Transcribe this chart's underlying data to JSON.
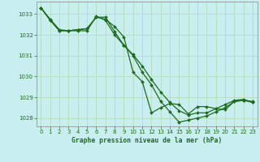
{
  "xlabel": "Graphe pression niveau de la mer (hPa)",
  "background_color": "#c8eef0",
  "line_color": "#1e6b1e",
  "grid_color": "#b0d8b0",
  "text_color": "#1e6b1e",
  "spine_color": "#888888",
  "ylim": [
    1027.6,
    1033.6
  ],
  "xlim": [
    -0.5,
    23.5
  ],
  "yticks": [
    1028,
    1029,
    1030,
    1031,
    1032,
    1033
  ],
  "xticks": [
    0,
    1,
    2,
    3,
    4,
    5,
    6,
    7,
    8,
    9,
    10,
    11,
    12,
    13,
    14,
    15,
    16,
    17,
    18,
    19,
    20,
    21,
    22,
    23
  ],
  "series": [
    [
      1033.3,
      1032.7,
      1032.2,
      1032.2,
      1032.2,
      1032.2,
      1032.9,
      1032.7,
      1032.0,
      1031.5,
      1031.0,
      1030.2,
      1029.6,
      1028.8,
      1028.3,
      1027.8,
      1027.9,
      1028.0,
      1028.1,
      1028.3,
      1028.5,
      1028.8,
      1028.85,
      1028.8
    ],
    [
      1033.3,
      1032.75,
      1032.25,
      1032.2,
      1032.25,
      1032.3,
      1032.85,
      1032.75,
      1032.4,
      1031.9,
      1030.2,
      1029.75,
      1028.25,
      1028.5,
      1028.7,
      1028.65,
      1028.2,
      1028.55,
      1028.55,
      1028.45,
      1028.65,
      1028.85,
      1028.9,
      1028.75
    ],
    [
      1033.3,
      1032.7,
      1032.2,
      1032.2,
      1032.25,
      1032.3,
      1032.85,
      1032.85,
      1032.15,
      1031.5,
      1031.05,
      1030.5,
      1029.85,
      1029.25,
      1028.75,
      1028.35,
      1028.15,
      1028.25,
      1028.25,
      1028.45,
      1028.4,
      1028.8,
      1028.85,
      1028.75
    ]
  ]
}
